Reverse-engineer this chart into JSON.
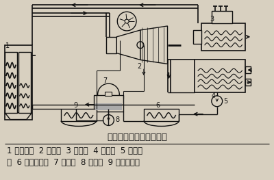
{
  "title": "汽轮机发电动力装置示意",
  "legend_line1": "1 电站锅炉  2 汽轮机  3 发电机  4 凝汽器  5 凝结水",
  "legend_line2": "泵  6 低压加热器  7 除氧器  8 给水泵  9 高压加热器",
  "bg_color": "#d8d0c0",
  "line_color": "#111111",
  "title_fontsize": 9.5,
  "legend_fontsize": 8.5
}
